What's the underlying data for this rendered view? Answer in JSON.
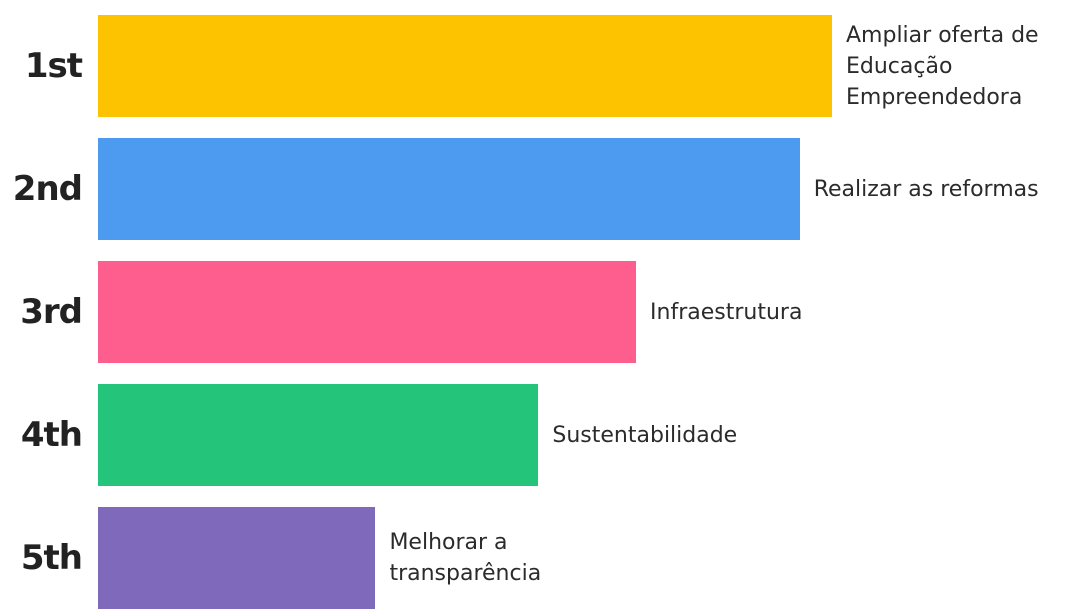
{
  "chart_data": {
    "type": "bar",
    "orientation": "horizontal",
    "title": "",
    "xlabel": "",
    "ylabel": "",
    "legend": "none",
    "grid": false,
    "categories": [
      "1st",
      "2nd",
      "3rd",
      "4th",
      "5th"
    ],
    "labels": [
      [
        "Ampliar oferta de",
        "Educação",
        "Empreendedora"
      ],
      [
        "Realizar as reformas"
      ],
      [
        "Infraestrutura"
      ],
      [
        "Sustentabilidade"
      ],
      [
        "Melhorar a",
        "transparência"
      ]
    ],
    "values": [
      100,
      95.6,
      73.3,
      60,
      37.8
    ],
    "xlim": [
      0,
      100
    ],
    "colors": [
      "#fdc200",
      "#4c9bf0",
      "#fd5e8d",
      "#24c57a",
      "#7e69ba"
    ]
  }
}
